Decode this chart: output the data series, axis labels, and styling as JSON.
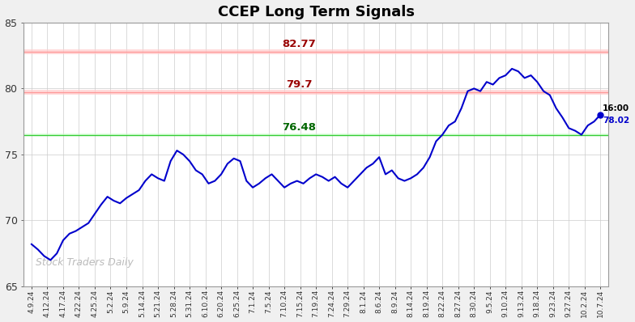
{
  "title": "CCEP Long Term Signals",
  "hline_red1": 82.77,
  "hline_red2": 79.7,
  "hline_green": 76.48,
  "line_color": "#0000cc",
  "last_price": 78.02,
  "last_time": "16:00",
  "watermark": "Stock Traders Daily",
  "ylim": [
    65,
    85
  ],
  "yticks": [
    65,
    70,
    75,
    80,
    85
  ],
  "background_color": "#f0f0f0",
  "plot_bg": "#ffffff",
  "x_labels": [
    "4.9.24",
    "4.12.24",
    "4.17.24",
    "4.22.24",
    "4.25.24",
    "5.2.24",
    "5.9.24",
    "5.14.24",
    "5.21.24",
    "5.28.24",
    "5.31.24",
    "6.10.24",
    "6.20.24",
    "6.25.24",
    "7.1.24",
    "7.5.24",
    "7.10.24",
    "7.15.24",
    "7.19.24",
    "7.24.24",
    "7.29.24",
    "8.1.24",
    "8.6.24",
    "8.9.24",
    "8.14.24",
    "8.19.24",
    "8.22.24",
    "8.27.24",
    "8.30.24",
    "9.5.24",
    "9.10.24",
    "9.13.24",
    "9.18.24",
    "9.23.24",
    "9.27.24",
    "10.2.24",
    "10.7.24"
  ],
  "full_prices": [
    68.2,
    67.8,
    67.3,
    67.0,
    67.5,
    68.5,
    69.0,
    69.2,
    69.5,
    69.8,
    70.5,
    71.2,
    71.8,
    71.5,
    71.3,
    71.7,
    72.0,
    72.3,
    73.0,
    73.5,
    73.2,
    73.0,
    74.5,
    75.3,
    75.0,
    74.5,
    73.8,
    73.5,
    72.8,
    73.0,
    73.5,
    74.3,
    74.7,
    74.5,
    73.0,
    72.5,
    72.8,
    73.2,
    73.5,
    73.0,
    72.5,
    72.8,
    73.0,
    72.8,
    73.2,
    73.5,
    73.3,
    73.0,
    73.3,
    72.8,
    72.5,
    73.0,
    73.5,
    74.0,
    74.3,
    74.8,
    73.5,
    73.8,
    73.2,
    73.0,
    73.2,
    73.5,
    74.0,
    74.8,
    76.0,
    76.5,
    77.2,
    77.5,
    78.5,
    79.8,
    80.0,
    79.8,
    80.5,
    80.3,
    80.8,
    81.0,
    81.5,
    81.3,
    80.8,
    81.0,
    80.5,
    79.8,
    79.5,
    78.5,
    77.8,
    77.0,
    76.8,
    76.5,
    77.2,
    77.5,
    78.02
  ]
}
